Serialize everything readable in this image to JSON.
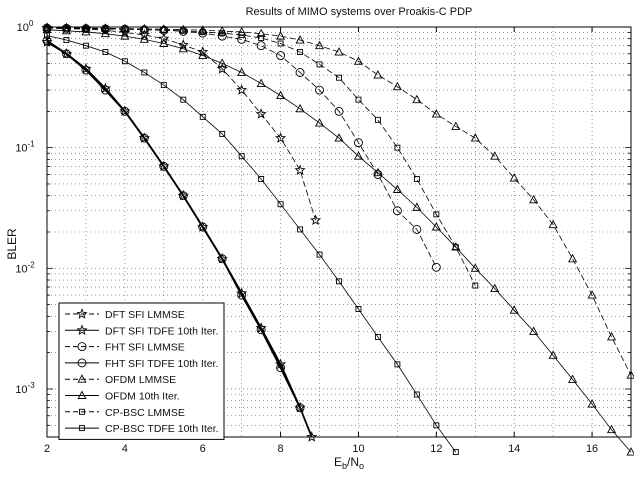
{
  "chart_data": {
    "type": "line",
    "title": "Results of MIMO systems over Proakis-C PDP",
    "xlabel": {
      "main": "E",
      "sub1": "b",
      "sep": "/N",
      "sub2": "o"
    },
    "ylabel": "BLER",
    "xlim": [
      2,
      17
    ],
    "ylim": [
      0.0004,
      1
    ],
    "yscale": "log",
    "grid": true,
    "legend_position": "bottom-left",
    "x_ticks": [
      {
        "value": 2,
        "label": "2"
      },
      {
        "value": 4,
        "label": "4"
      },
      {
        "value": 6,
        "label": "6"
      },
      {
        "value": 8,
        "label": "8"
      },
      {
        "value": 10,
        "label": "10"
      },
      {
        "value": 12,
        "label": "12"
      },
      {
        "value": 14,
        "label": "14"
      },
      {
        "value": 16,
        "label": "16"
      }
    ],
    "y_ticks": [
      {
        "value": 1,
        "base": "10",
        "exp": "0"
      },
      {
        "value": 0.1,
        "base": "10",
        "exp": "-1"
      },
      {
        "value": 0.01,
        "base": "10",
        "exp": "-2"
      },
      {
        "value": 0.001,
        "base": "10",
        "exp": "-3"
      }
    ],
    "series": [
      {
        "name": "DFT SFI LMMSE",
        "marker": "star",
        "dash": true,
        "x": [
          2,
          2.5,
          3,
          3.5,
          4,
          4.5,
          5,
          5.5,
          6,
          6.5,
          7,
          7.5,
          8,
          8.5,
          8.9
        ],
        "y": [
          0.98,
          0.97,
          0.96,
          0.94,
          0.9,
          0.86,
          0.8,
          0.71,
          0.62,
          0.45,
          0.3,
          0.19,
          0.12,
          0.065,
          0.025
        ]
      },
      {
        "name": "DFT SFI TDFE  10th Iter.",
        "marker": "star",
        "dash": false,
        "x": [
          2,
          2.5,
          3,
          3.5,
          4,
          4.5,
          5,
          5.5,
          6,
          6.5,
          7,
          7.5,
          8,
          8.5,
          8.8
        ],
        "y": [
          0.75,
          0.6,
          0.45,
          0.31,
          0.2,
          0.12,
          0.07,
          0.04,
          0.022,
          0.012,
          0.0062,
          0.0032,
          0.0016,
          0.0007,
          0.0004
        ]
      },
      {
        "name": "FHT SFI LMMSE",
        "marker": "circle",
        "dash": true,
        "x": [
          2,
          2.5,
          3,
          3.5,
          4,
          4.5,
          5,
          5.5,
          6,
          6.5,
          7,
          7.5,
          8,
          8.5,
          9,
          9.5,
          10,
          10.5,
          11,
          11.5,
          12
        ],
        "y": [
          0.98,
          0.975,
          0.97,
          0.965,
          0.96,
          0.95,
          0.94,
          0.92,
          0.89,
          0.84,
          0.79,
          0.7,
          0.58,
          0.42,
          0.3,
          0.2,
          0.11,
          0.06,
          0.03,
          0.021,
          0.0102
        ]
      },
      {
        "name": "FHT SFI TDFE  10th Iter.",
        "marker": "circle",
        "dash": false,
        "x": [
          2,
          2.5,
          3,
          3.5,
          4,
          4.5,
          5,
          5.5,
          6,
          6.5,
          7,
          7.5,
          8,
          8.5
        ],
        "y": [
          0.77,
          0.6,
          0.44,
          0.3,
          0.2,
          0.12,
          0.07,
          0.04,
          0.022,
          0.012,
          0.006,
          0.0031,
          0.0015,
          0.0007
        ]
      },
      {
        "name": "OFDM LMMSE",
        "marker": "triangle",
        "dash": true,
        "x": [
          2,
          2.5,
          3,
          3.5,
          4,
          4.5,
          5,
          5.5,
          6,
          6.5,
          7,
          7.5,
          8,
          8.5,
          9,
          9.5,
          10,
          10.5,
          11,
          11.5,
          12,
          12.5,
          13,
          13.5,
          14,
          14.5,
          15,
          15.5,
          16,
          16.5,
          17
        ],
        "y": [
          0.99,
          0.985,
          0.98,
          0.975,
          0.97,
          0.965,
          0.96,
          0.95,
          0.94,
          0.925,
          0.91,
          0.88,
          0.84,
          0.78,
          0.7,
          0.62,
          0.52,
          0.4,
          0.32,
          0.25,
          0.19,
          0.15,
          0.12,
          0.085,
          0.056,
          0.037,
          0.023,
          0.012,
          0.006,
          0.0027,
          0.0013
        ]
      },
      {
        "name": "OFDM 10th Iter.",
        "marker": "triangle",
        "dash": false,
        "x": [
          2,
          2.5,
          3,
          3.5,
          4,
          4.5,
          5,
          5.5,
          6,
          6.5,
          7,
          7.5,
          8,
          8.5,
          9,
          9.5,
          10,
          10.5,
          11,
          11.5,
          12,
          12.5,
          13,
          13.5,
          14,
          14.5,
          15,
          15.5,
          16,
          16.5,
          17
        ],
        "y": [
          0.95,
          0.93,
          0.91,
          0.88,
          0.84,
          0.79,
          0.73,
          0.66,
          0.58,
          0.5,
          0.42,
          0.34,
          0.27,
          0.21,
          0.16,
          0.12,
          0.085,
          0.062,
          0.045,
          0.032,
          0.022,
          0.015,
          0.01,
          0.0068,
          0.0045,
          0.003,
          0.0019,
          0.0012,
          0.00075,
          0.00046,
          0.0003
        ]
      },
      {
        "name": "CP-BSC LMMSE",
        "marker": "square",
        "dash": true,
        "x": [
          2,
          2.5,
          3,
          3.5,
          4,
          4.5,
          5,
          5.5,
          6,
          6.5,
          7,
          7.5,
          8,
          8.5,
          9,
          9.5,
          10,
          10.5,
          11,
          11.5,
          12,
          12.5,
          13
        ],
        "y": [
          0.98,
          0.975,
          0.97,
          0.965,
          0.96,
          0.95,
          0.94,
          0.93,
          0.91,
          0.89,
          0.86,
          0.81,
          0.73,
          0.62,
          0.49,
          0.38,
          0.25,
          0.17,
          0.1,
          0.055,
          0.028,
          0.015,
          0.0072
        ]
      },
      {
        "name": "CP-BSC TDFE  10th Iter.",
        "marker": "square",
        "dash": false,
        "x": [
          2,
          2.5,
          3,
          3.5,
          4,
          4.5,
          5,
          5.5,
          6,
          6.5,
          7,
          7.5,
          8,
          8.5,
          9,
          9.5,
          10,
          10.5,
          11,
          11.5,
          12,
          12.5
        ],
        "y": [
          0.85,
          0.78,
          0.7,
          0.62,
          0.52,
          0.42,
          0.33,
          0.25,
          0.18,
          0.13,
          0.085,
          0.055,
          0.034,
          0.021,
          0.013,
          0.0078,
          0.0046,
          0.0027,
          0.0016,
          0.0009,
          0.0005,
          0.0003
        ]
      }
    ]
  }
}
